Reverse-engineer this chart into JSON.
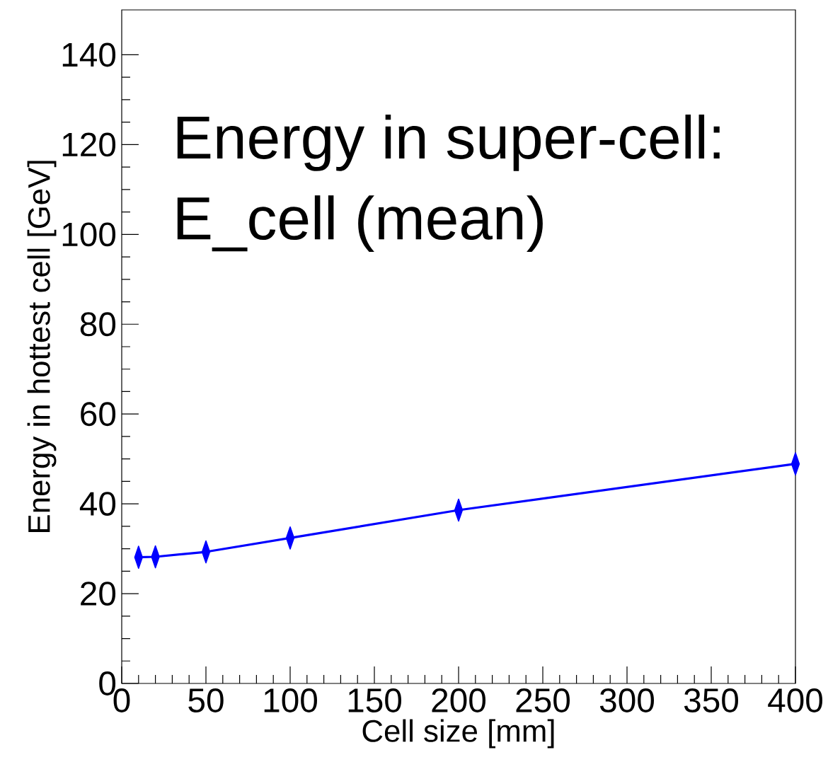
{
  "chart_data": {
    "type": "line",
    "xlabel": "Cell size [mm]",
    "ylabel": "Energy in hottest cell [GeV]",
    "annotations": [
      "Energy in super-cell:",
      "E_cell (mean)"
    ],
    "x": [
      10,
      20,
      50,
      100,
      200,
      400
    ],
    "series": [
      {
        "color": "#0000ff",
        "values": [
          28.1,
          28.2,
          29.3,
          32.4,
          38.6,
          48.9
        ]
      }
    ],
    "xlim": [
      0,
      400
    ],
    "xticks": [
      0,
      50,
      100,
      150,
      200,
      250,
      300,
      350,
      400
    ],
    "ylim": [
      0,
      150
    ],
    "yticks": [
      0,
      20,
      40,
      60,
      80,
      100,
      120,
      140
    ],
    "grid": false,
    "marker": "diamond",
    "line_style": "solid"
  }
}
